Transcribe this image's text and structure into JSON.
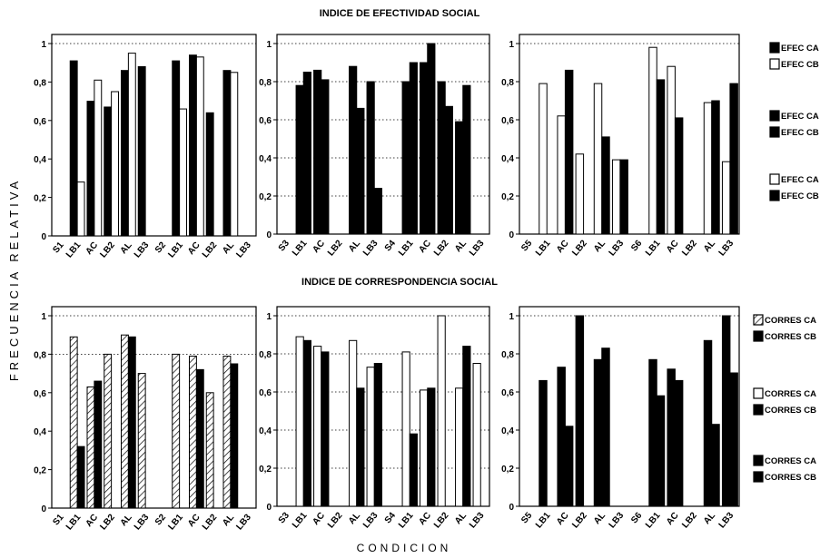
{
  "figure": {
    "ylabel": "FRECUENCIA RELATIVA",
    "xlabel": "CONDICION",
    "row_titles": [
      "INDICE DE EFECTIVIDAD SOCIAL",
      "INDICE DE CORRESPONDENCIA SOCIAL"
    ],
    "legends": [
      {
        "row": 0,
        "items": [
          {
            "label": "EFEC CA",
            "style": "black"
          },
          {
            "label": "EFEC CB",
            "style": "white"
          },
          {
            "label": "EFEC CA",
            "style": "black"
          },
          {
            "label": "EFEC CB",
            "style": "black"
          },
          {
            "label": "EFEC CA",
            "style": "white"
          },
          {
            "label": "EFEC CB",
            "style": "black"
          }
        ]
      },
      {
        "row": 1,
        "items": [
          {
            "label": "CORRES CA",
            "style": "hatch"
          },
          {
            "label": "CORRES CB",
            "style": "black"
          },
          {
            "label": "CORRES CA",
            "style": "white"
          },
          {
            "label": "CORRES CB",
            "style": "black"
          },
          {
            "label": "CORRES CA",
            "style": "black"
          },
          {
            "label": "CORRES CB",
            "style": "black"
          }
        ]
      }
    ]
  },
  "chart_data": [
    {
      "type": "bar",
      "panel": "top-left",
      "ylim": [
        0,
        1
      ],
      "yticks": [
        "0",
        "0,2",
        "0,4",
        "0,6",
        "0,8",
        "1"
      ],
      "grid": "dotted at 1",
      "categories": [
        "S1",
        "LB1",
        "AC",
        "LB2",
        "AL",
        "LB3",
        "S2",
        "LB1",
        "AC",
        "LB2",
        "AL",
        "LB3"
      ],
      "series": [
        {
          "name": "EFEC CA",
          "fill": "black",
          "values": [
            null,
            0.91,
            0.7,
            0.67,
            0.86,
            0.88,
            null,
            0.91,
            0.94,
            0.64,
            0.86,
            null
          ]
        },
        {
          "name": "EFEC CB",
          "fill": "white",
          "values": [
            null,
            0.28,
            0.81,
            0.75,
            0.95,
            null,
            null,
            0.66,
            0.93,
            null,
            0.85,
            null
          ]
        }
      ]
    },
    {
      "type": "bar",
      "panel": "top-middle",
      "ylim": [
        0,
        1
      ],
      "yticks": [
        "0",
        "0,2",
        "0,4",
        "0,6",
        "0,8",
        "1"
      ],
      "grid": "dotted at 0.2-1",
      "categories": [
        "S3",
        "LB1",
        "AC",
        "LB2",
        "AL",
        "LB3",
        "S4",
        "LB1",
        "AC",
        "LB2",
        "AL",
        "LB3"
      ],
      "series": [
        {
          "name": "EFEC CA",
          "fill": "black",
          "values": [
            null,
            0.78,
            0.86,
            null,
            0.88,
            0.8,
            null,
            0.8,
            0.9,
            0.8,
            0.59,
            null
          ]
        },
        {
          "name": "EFEC CB",
          "fill": "black",
          "values": [
            null,
            0.85,
            0.81,
            null,
            0.66,
            0.24,
            null,
            0.9,
            1.0,
            0.67,
            0.78,
            null
          ]
        }
      ]
    },
    {
      "type": "bar",
      "panel": "top-right",
      "ylim": [
        0,
        1
      ],
      "yticks": [
        "0",
        "0,2",
        "0,4",
        "0,6",
        "0,8",
        "1"
      ],
      "grid": "dotted at 1",
      "categories": [
        "S5",
        "LB1",
        "AC",
        "LB2",
        "AL",
        "LB3",
        "S6",
        "LB1",
        "AC",
        "LB2",
        "AL",
        "LB3"
      ],
      "series": [
        {
          "name": "EFEC CA",
          "fill": "white",
          "values": [
            null,
            0.79,
            0.62,
            0.42,
            0.79,
            0.39,
            null,
            0.98,
            0.88,
            null,
            0.69,
            0.38
          ]
        },
        {
          "name": "EFEC CB",
          "fill": "black",
          "values": [
            null,
            null,
            0.86,
            null,
            0.51,
            0.39,
            null,
            0.81,
            0.61,
            null,
            0.7,
            0.79
          ]
        }
      ]
    },
    {
      "type": "bar",
      "panel": "bottom-left",
      "ylim": [
        0,
        1
      ],
      "yticks": [
        "0",
        "0,2",
        "0,4",
        "0,6",
        "0,8",
        "1"
      ],
      "grid": "dotted at 0.8-1",
      "categories": [
        "S1",
        "LB1",
        "AC",
        "LB2",
        "AL",
        "LB3",
        "S2",
        "LB1",
        "AC",
        "LB2",
        "AL",
        "LB3"
      ],
      "series": [
        {
          "name": "CORRES CA",
          "fill": "hatch",
          "values": [
            null,
            0.89,
            0.63,
            0.8,
            0.9,
            0.7,
            null,
            0.8,
            0.79,
            0.6,
            0.79,
            null
          ]
        },
        {
          "name": "CORRES CB",
          "fill": "black",
          "values": [
            null,
            0.32,
            0.66,
            null,
            0.89,
            null,
            null,
            null,
            0.72,
            null,
            0.75,
            null
          ]
        }
      ]
    },
    {
      "type": "bar",
      "panel": "bottom-middle",
      "ylim": [
        0,
        1
      ],
      "yticks": [
        "0",
        "0,2",
        "0,4",
        "0,6",
        "0,8",
        "1"
      ],
      "grid": "dotted at 0.2-1",
      "categories": [
        "S3",
        "LB1",
        "AC",
        "LB2",
        "AL",
        "LB3",
        "S4",
        "LB1",
        "AC",
        "LB2",
        "AL",
        "LB3"
      ],
      "series": [
        {
          "name": "CORRES CA",
          "fill": "white",
          "values": [
            null,
            0.89,
            0.84,
            null,
            0.87,
            0.73,
            null,
            0.81,
            0.61,
            1.0,
            0.62,
            0.75
          ]
        },
        {
          "name": "CORRES CB",
          "fill": "black",
          "values": [
            null,
            0.87,
            0.81,
            null,
            0.62,
            0.75,
            null,
            0.38,
            0.62,
            null,
            0.84,
            null
          ]
        }
      ]
    },
    {
      "type": "bar",
      "panel": "bottom-right",
      "ylim": [
        0,
        1
      ],
      "yticks": [
        "0",
        "0,2",
        "0,4",
        "0,6",
        "0,8",
        "1"
      ],
      "grid": "dotted at 1",
      "categories": [
        "S5",
        "LB1",
        "AC",
        "LB2",
        "AL",
        "LB3",
        "S6",
        "LB1",
        "AC",
        "LB2",
        "AL",
        "LB3"
      ],
      "series": [
        {
          "name": "CORRES CA",
          "fill": "black",
          "values": [
            null,
            0.66,
            0.73,
            1.0,
            0.77,
            null,
            null,
            0.77,
            0.72,
            null,
            0.87,
            1.0
          ]
        },
        {
          "name": "CORRES CB",
          "fill": "black",
          "values": [
            null,
            null,
            0.42,
            null,
            0.83,
            null,
            null,
            0.58,
            0.66,
            null,
            0.43,
            0.7
          ]
        }
      ]
    }
  ]
}
